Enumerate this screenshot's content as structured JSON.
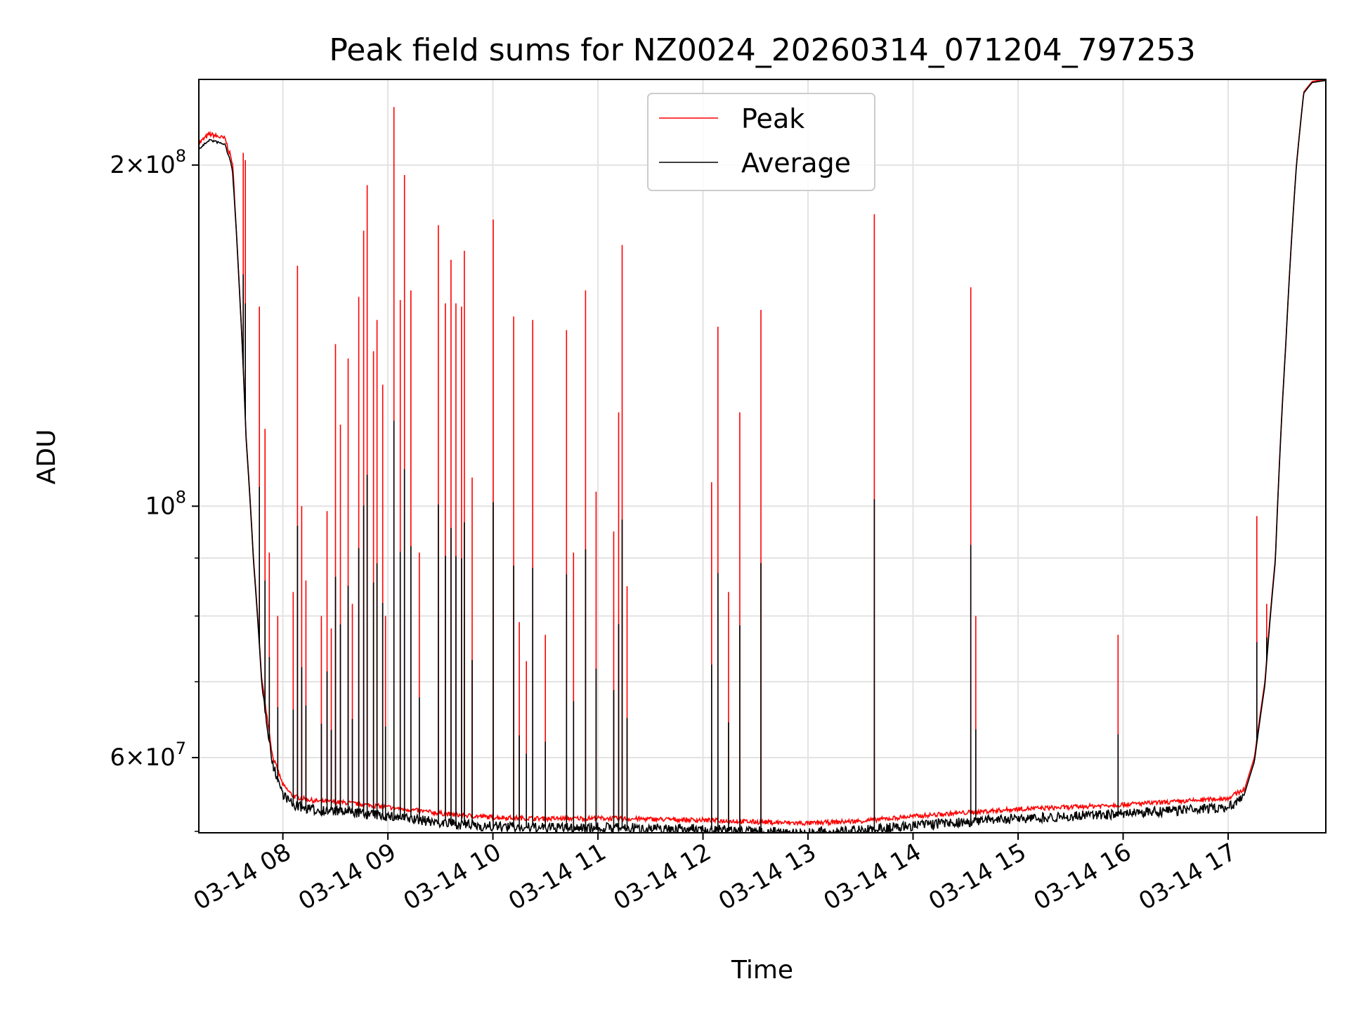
{
  "chart_data": {
    "type": "line",
    "title": "Peak field sums for NZ0024_20260314_071204_797253",
    "xlabel": "Time",
    "ylabel": "ADU",
    "yscale": "log",
    "ylim": [
      51500000,
      238000000
    ],
    "xlim_hours": [
      7.2,
      17.93
    ],
    "grid": true,
    "legend_position": "top-center",
    "x_ticks": [
      {
        "hour": 8,
        "label": "03-14 08"
      },
      {
        "hour": 9,
        "label": "03-14 09"
      },
      {
        "hour": 10,
        "label": "03-14 10"
      },
      {
        "hour": 11,
        "label": "03-14 11"
      },
      {
        "hour": 12,
        "label": "03-14 12"
      },
      {
        "hour": 13,
        "label": "03-14 13"
      },
      {
        "hour": 14,
        "label": "03-14 14"
      },
      {
        "hour": 15,
        "label": "03-14 15"
      },
      {
        "hour": 16,
        "label": "03-14 16"
      },
      {
        "hour": 17,
        "label": "03-14 17"
      }
    ],
    "y_major_ticks": [
      {
        "value": 60000000,
        "mant": "6",
        "exp": "7"
      },
      {
        "value": 100000000,
        "mant": "",
        "exp": "8"
      },
      {
        "value": 200000000,
        "mant": "2",
        "exp": "8"
      }
    ],
    "y_minor_ticks": [
      70000000,
      80000000,
      90000000
    ],
    "series": [
      {
        "name": "Peak",
        "color": "#ff0000",
        "baseline": [
          [
            7.2,
            208
          ],
          [
            7.3,
            212
          ],
          [
            7.45,
            210
          ],
          [
            7.52,
            200
          ],
          [
            7.58,
            160
          ],
          [
            7.65,
            115
          ],
          [
            7.72,
            90
          ],
          [
            7.8,
            70
          ],
          [
            7.9,
            60
          ],
          [
            8.0,
            56.5
          ],
          [
            8.1,
            55.2
          ],
          [
            8.3,
            54.7
          ],
          [
            8.6,
            54.5
          ],
          [
            9.0,
            54.0
          ],
          [
            9.3,
            53.6
          ],
          [
            9.6,
            53.2
          ],
          [
            10.0,
            52.9
          ],
          [
            10.5,
            52.75
          ],
          [
            11.0,
            52.8
          ],
          [
            12.0,
            52.6
          ],
          [
            12.5,
            52.4
          ],
          [
            13.0,
            52.25
          ],
          [
            13.5,
            52.5
          ],
          [
            14.0,
            53.0
          ],
          [
            14.5,
            53.4
          ],
          [
            15.0,
            53.8
          ],
          [
            15.5,
            54.0
          ],
          [
            16.0,
            54.3
          ],
          [
            16.5,
            54.6
          ],
          [
            17.0,
            55.0
          ],
          [
            17.15,
            56.0
          ],
          [
            17.25,
            60.0
          ],
          [
            17.35,
            70.0
          ],
          [
            17.45,
            90.0
          ],
          [
            17.55,
            140.0
          ],
          [
            17.65,
            200.0
          ],
          [
            17.72,
            232.0
          ],
          [
            17.8,
            237.0
          ],
          [
            17.93,
            238.0
          ]
        ],
        "spikes": [
          [
            7.62,
            205
          ],
          [
            7.64,
            202
          ],
          [
            7.78,
            150
          ],
          [
            7.83,
            117
          ],
          [
            7.87,
            91
          ],
          [
            7.95,
            80
          ],
          [
            8.1,
            84
          ],
          [
            8.14,
            163
          ],
          [
            8.18,
            100
          ],
          [
            8.22,
            86
          ],
          [
            8.37,
            80
          ],
          [
            8.42,
            99
          ],
          [
            8.46,
            78
          ],
          [
            8.5,
            139
          ],
          [
            8.55,
            118
          ],
          [
            8.62,
            135
          ],
          [
            8.66,
            82
          ],
          [
            8.72,
            153
          ],
          [
            8.77,
            175
          ],
          [
            8.8,
            192
          ],
          [
            8.86,
            137
          ],
          [
            8.9,
            146
          ],
          [
            8.95,
            128
          ],
          [
            8.98,
            80
          ],
          [
            9.06,
            225
          ],
          [
            9.12,
            152
          ],
          [
            9.16,
            196
          ],
          [
            9.22,
            155
          ],
          [
            9.3,
            91
          ],
          [
            9.48,
            177
          ],
          [
            9.55,
            151
          ],
          [
            9.6,
            165
          ],
          [
            9.65,
            151
          ],
          [
            9.7,
            150
          ],
          [
            9.73,
            168
          ],
          [
            9.8,
            106
          ],
          [
            10.0,
            179
          ],
          [
            10.2,
            147
          ],
          [
            10.25,
            79
          ],
          [
            10.32,
            73
          ],
          [
            10.38,
            146
          ],
          [
            10.5,
            77
          ],
          [
            10.7,
            143
          ],
          [
            10.77,
            91
          ],
          [
            10.88,
            155
          ],
          [
            10.98,
            103
          ],
          [
            11.15,
            95
          ],
          [
            11.2,
            121
          ],
          [
            11.23,
            170
          ],
          [
            11.28,
            85
          ],
          [
            12.08,
            105
          ],
          [
            12.14,
            144
          ],
          [
            12.24,
            84
          ],
          [
            12.35,
            121
          ],
          [
            12.55,
            149
          ],
          [
            13.63,
            181
          ],
          [
            14.55,
            156
          ],
          [
            14.6,
            80
          ],
          [
            15.95,
            77
          ],
          [
            17.27,
            98
          ],
          [
            17.37,
            82
          ]
        ]
      },
      {
        "name": "Average",
        "color": "#000000"
      }
    ]
  }
}
